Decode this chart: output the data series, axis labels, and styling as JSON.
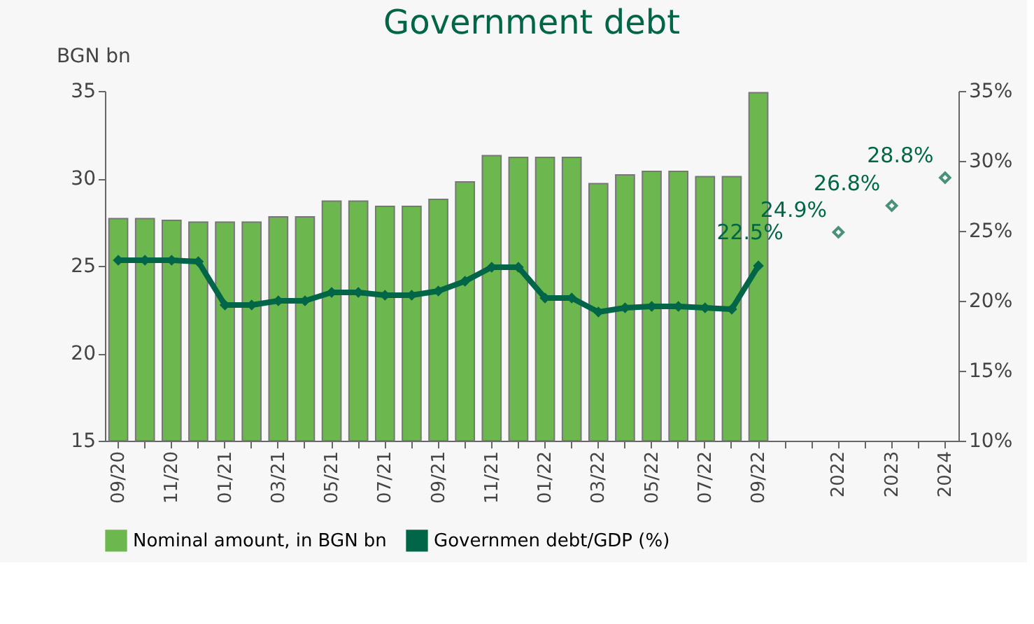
{
  "chart_data": {
    "type": "bar",
    "title": "Government debt",
    "ylabel": "BGN bn",
    "categories": [
      "09/20",
      null,
      "11/20",
      null,
      "01/21",
      null,
      "03/21",
      null,
      "05/21",
      null,
      "07/21",
      null,
      "09/21",
      null,
      "11/21",
      null,
      "01/22",
      null,
      "03/22",
      null,
      "05/22",
      null,
      "07/22",
      null,
      "09/22",
      null,
      null,
      "2022",
      null,
      "2023",
      null,
      "2024"
    ],
    "series": [
      {
        "name": "Nominal amount, in BGN bn",
        "color": "#6cb84e",
        "values": [
          27.7,
          27.7,
          27.6,
          27.5,
          27.5,
          27.5,
          27.8,
          27.8,
          28.7,
          28.7,
          28.4,
          28.4,
          28.8,
          29.8,
          31.3,
          31.2,
          31.2,
          31.2,
          29.7,
          30.2,
          30.4,
          30.4,
          30.1,
          30.1,
          34.9,
          null,
          null,
          null,
          null,
          null,
          null,
          null
        ]
      },
      {
        "name": "Governmen debt/GDP (%)",
        "type": "line",
        "axis": "y2",
        "marker": "diamond",
        "color": "#006647",
        "values": [
          22.9,
          22.9,
          22.9,
          22.8,
          19.7,
          19.7,
          20.0,
          20.0,
          20.6,
          20.6,
          20.4,
          20.4,
          20.7,
          21.4,
          22.4,
          22.4,
          20.2,
          20.2,
          19.2,
          19.5,
          19.6,
          19.6,
          19.5,
          19.4,
          22.5,
          null,
          null,
          null,
          null,
          null,
          null,
          null
        ],
        "value_labels": [
          null,
          null,
          null,
          null,
          null,
          null,
          null,
          null,
          null,
          null,
          null,
          null,
          null,
          null,
          null,
          null,
          null,
          null,
          null,
          null,
          null,
          null,
          null,
          null,
          "22.5%",
          null,
          null,
          null,
          null,
          null,
          null,
          null
        ]
      },
      {
        "type": "scatter",
        "axis": "y2",
        "marker": "diamond",
        "color": "#006647",
        "values": [
          null,
          null,
          null,
          null,
          null,
          null,
          null,
          null,
          null,
          null,
          null,
          null,
          null,
          null,
          null,
          null,
          null,
          null,
          null,
          null,
          null,
          null,
          null,
          null,
          null,
          null,
          null,
          24.9,
          null,
          26.8,
          null,
          28.8
        ],
        "value_labels": [
          null,
          null,
          null,
          null,
          null,
          null,
          null,
          null,
          null,
          null,
          null,
          null,
          null,
          null,
          null,
          null,
          null,
          null,
          null,
          null,
          null,
          null,
          null,
          null,
          null,
          null,
          null,
          "24.9%",
          null,
          "26.8%",
          null,
          "28.8%"
        ]
      }
    ],
    "ylim": [
      15,
      35
    ],
    "yticks": [
      15,
      20,
      25,
      30,
      35
    ],
    "y2lim": [
      10,
      35
    ],
    "y2ticks": [
      {
        "value": 10,
        "label": "10%"
      },
      {
        "value": 15,
        "label": "15%"
      },
      {
        "value": 20,
        "label": "20%"
      },
      {
        "value": 25,
        "label": "25%"
      },
      {
        "value": 30,
        "label": "30%"
      },
      {
        "value": 35,
        "label": "35%"
      }
    ],
    "grid": false,
    "legend": "bottom"
  }
}
